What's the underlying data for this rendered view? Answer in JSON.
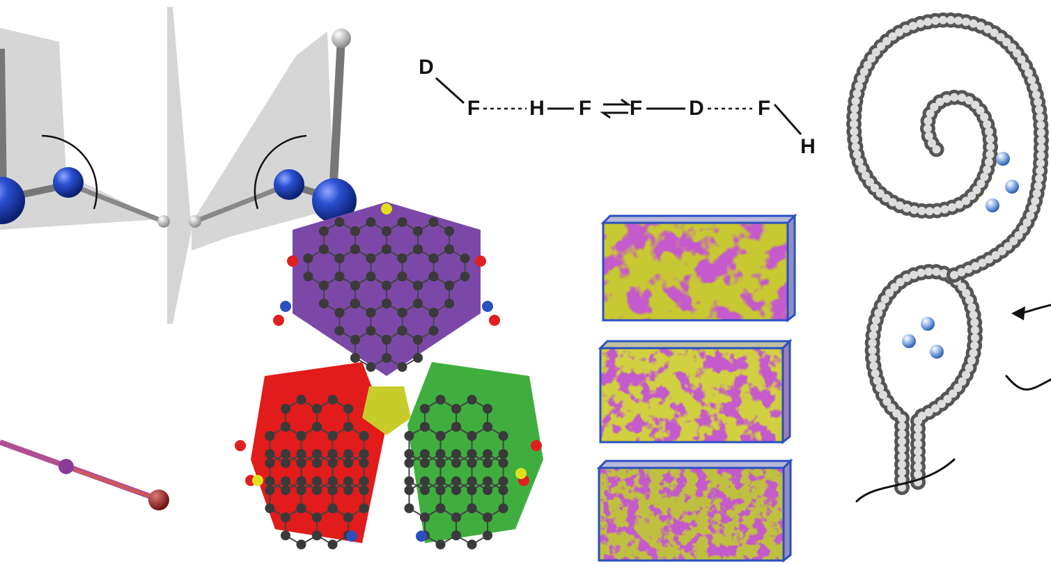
{
  "equation": {
    "atoms": [
      "D",
      "F",
      "H",
      "F",
      "F",
      "D",
      "F",
      "H"
    ]
  }
}
